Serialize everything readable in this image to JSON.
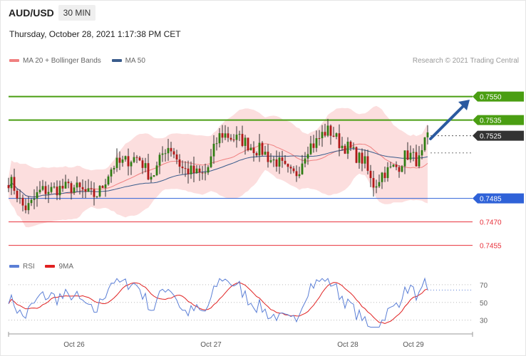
{
  "header": {
    "symbol": "AUD/USD",
    "timeframe": "30 MIN",
    "timestamp": "Thursday, October 28, 2021 1:17:38 PM CET",
    "credit": "Research © 2021 Trading Central"
  },
  "legend_main": [
    {
      "label": "MA 20 + Bollinger Bands",
      "color": "#f08080"
    },
    {
      "label": "MA 50",
      "color": "#3a5c8c"
    }
  ],
  "legend_rsi": [
    {
      "label": "RSI",
      "color": "#5b7fd6"
    },
    {
      "label": "9MA",
      "color": "#e02020"
    }
  ],
  "chart_data": [
    {
      "type": "candlestick",
      "ylim": [
        0.7448,
        0.7568
      ],
      "x_ticks": [
        {
          "label": "Oct 26",
          "i": 23
        },
        {
          "label": "Oct 27",
          "i": 71
        },
        {
          "label": "Oct 28",
          "i": 119
        },
        {
          "label": "Oct 29",
          "i": 142
        }
      ],
      "levels": [
        {
          "value": 0.755,
          "label": "0.7550",
          "color": "#4a9e12",
          "style": "resistance"
        },
        {
          "value": 0.7535,
          "label": "0.7535",
          "color": "#4a9e12",
          "style": "resistance"
        },
        {
          "value": 0.7525,
          "label": "0.7525",
          "color": "#333333",
          "style": "last"
        },
        {
          "value": 0.7485,
          "label": "0.7485",
          "color": "#2f62d8",
          "style": "pivot"
        },
        {
          "value": 0.747,
          "label": "0.7470",
          "color": "#e8303a",
          "style": "support"
        },
        {
          "value": 0.7455,
          "label": "0.7455",
          "color": "#e8303a",
          "style": "support"
        }
      ],
      "projection": {
        "from": 0.7523,
        "to": 0.7548
      },
      "up_color": "#2e7d12",
      "down_color": "#b01818",
      "candle_count": 148
    },
    {
      "type": "line",
      "title": "RSI",
      "ylim": [
        20,
        78
      ],
      "y_ticks": [
        70,
        50,
        30
      ],
      "series": [
        {
          "name": "RSI",
          "color": "#5b7fd6"
        },
        {
          "name": "9MA",
          "color": "#e02020"
        }
      ],
      "last_rsi": 64
    }
  ]
}
